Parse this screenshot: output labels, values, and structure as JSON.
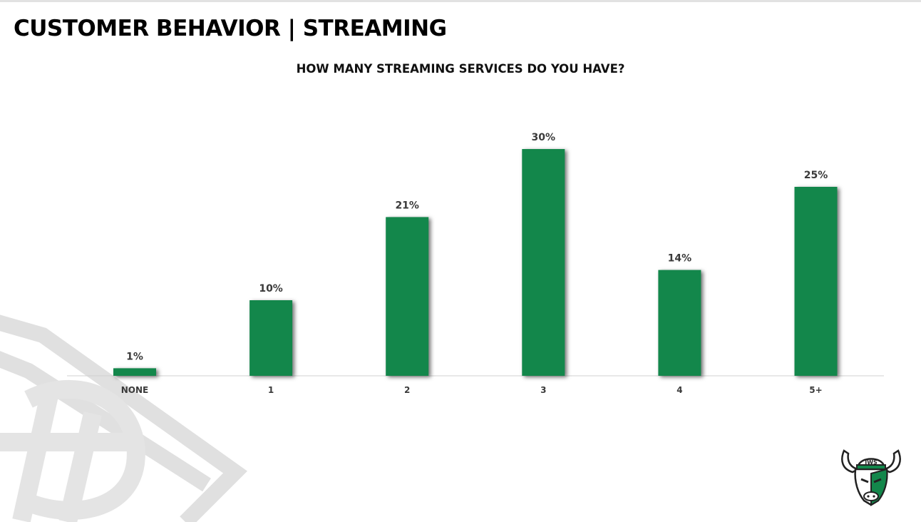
{
  "page": {
    "title": "CUSTOMER BEHAVIOR | STREAMING"
  },
  "colors": {
    "bar": "#13874b",
    "axis": "#d0d0d0",
    "label": "#3a3a3a",
    "watermark": "#e0e0e0"
  },
  "chart_data": {
    "type": "bar",
    "title": "HOW MANY STREAMING SERVICES DO YOU HAVE?",
    "categories": [
      "NONE",
      "1",
      "2",
      "3",
      "4",
      "5+"
    ],
    "values": [
      1,
      10,
      21,
      30,
      14,
      25
    ],
    "data_labels": [
      "1%",
      "10%",
      "21%",
      "30%",
      "14%",
      "25%"
    ],
    "unit": "%",
    "xlabel": "",
    "ylabel": "",
    "ylim": [
      0,
      30
    ],
    "grid": false,
    "legend": "none"
  },
  "logo": {
    "text": "JWS"
  },
  "icons": [
    "watermark-logo-icon",
    "bull-logo-icon"
  ]
}
